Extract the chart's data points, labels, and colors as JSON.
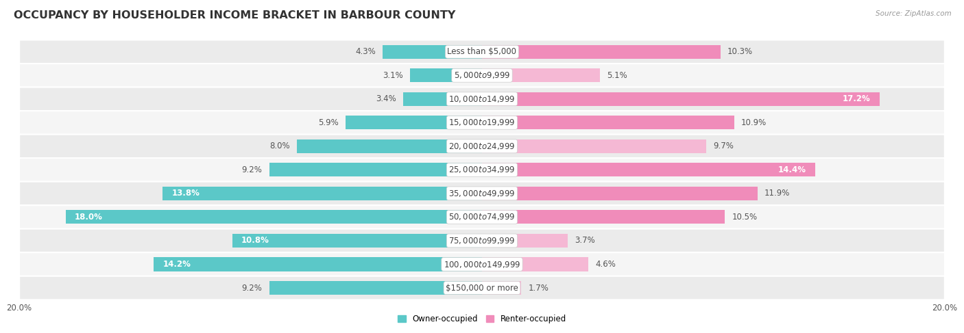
{
  "title": "OCCUPANCY BY HOUSEHOLDER INCOME BRACKET IN BARBOUR COUNTY",
  "source": "Source: ZipAtlas.com",
  "categories": [
    "Less than $5,000",
    "$5,000 to $9,999",
    "$10,000 to $14,999",
    "$15,000 to $19,999",
    "$20,000 to $24,999",
    "$25,000 to $34,999",
    "$35,000 to $49,999",
    "$50,000 to $74,999",
    "$75,000 to $99,999",
    "$100,000 to $149,999",
    "$150,000 or more"
  ],
  "owner_values": [
    4.3,
    3.1,
    3.4,
    5.9,
    8.0,
    9.2,
    13.8,
    18.0,
    10.8,
    14.2,
    9.2
  ],
  "renter_values": [
    10.3,
    5.1,
    17.2,
    10.9,
    9.7,
    14.4,
    11.9,
    10.5,
    3.7,
    4.6,
    1.7
  ],
  "owner_color": "#5bc8c8",
  "renter_color": "#f08cba",
  "renter_light_color": "#f5b8d4",
  "row_colors": [
    "#ebebeb",
    "#f5f5f5"
  ],
  "axis_limit": 20.0,
  "bar_height": 0.58,
  "title_fontsize": 11.5,
  "label_fontsize": 8.5,
  "value_fontsize": 8.5,
  "tick_fontsize": 8.5,
  "legend_fontsize": 8.5,
  "source_fontsize": 7.5,
  "inside_threshold_owner": 10.0,
  "inside_threshold_renter": 14.0
}
